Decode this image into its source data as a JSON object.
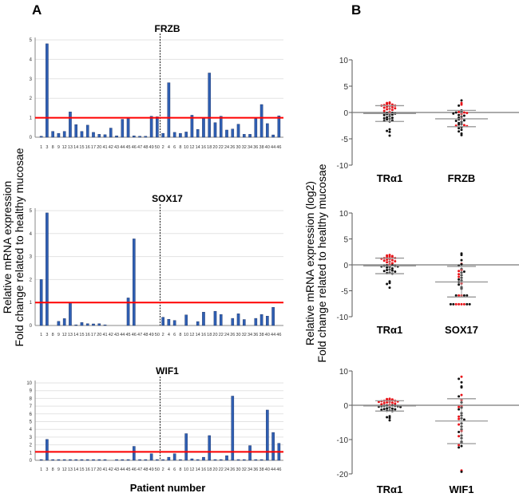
{
  "panel_labels": {
    "a": "A",
    "b": "B"
  },
  "left_ylabel": [
    "Relative mRNA expression",
    "Fold change related to healthy mucosae"
  ],
  "left_xlabel": "Patient number",
  "right_ylabel": [
    "Relative mRNA expression (log2)",
    "Fold change related to healthy mucosae"
  ],
  "colors": {
    "bar": "#2f5fb3",
    "threshold": "#ff0000",
    "dot_red": "#e8141a",
    "dot_black": "#111111",
    "sd": "#999999"
  },
  "chart_data": [
    {
      "type": "bar",
      "title": "FRZB",
      "ylim": [
        0,
        5
      ],
      "yticks": [
        0,
        1,
        2,
        3,
        4,
        5
      ],
      "threshold": 1,
      "grid": true,
      "categories": [
        "1",
        "3",
        "8",
        "9",
        "12",
        "13",
        "14",
        "15",
        "16",
        "17",
        "20",
        "41",
        "42",
        "43",
        "44",
        "45",
        "46",
        "47",
        "48",
        "49",
        "50",
        "2",
        "4",
        "6",
        "8",
        "10",
        "12",
        "14",
        "16",
        "18",
        "20",
        "22",
        "24",
        "26",
        "30",
        "32",
        "34",
        "36",
        "38",
        "40",
        "44",
        "46"
      ],
      "values": [
        0.05,
        4.8,
        0.3,
        0.2,
        0.3,
        1.3,
        0.65,
        0.3,
        0.62,
        0.25,
        0.15,
        0.13,
        0.47,
        0.07,
        0.92,
        0.97,
        0.07,
        0.05,
        0.05,
        1.08,
        1.05,
        0.2,
        2.8,
        0.25,
        0.2,
        0.27,
        1.13,
        0.4,
        0.97,
        3.3,
        0.75,
        1.08,
        0.37,
        0.42,
        0.67,
        0.15,
        0.15,
        0.95,
        1.68,
        0.7,
        0.12,
        1.1
      ]
    },
    {
      "type": "bar",
      "title": "SOX17",
      "ylim": [
        0,
        5
      ],
      "yticks": [
        0,
        1,
        2,
        3,
        4,
        5
      ],
      "threshold": 1,
      "grid": true,
      "categories": [
        "1",
        "3",
        "8",
        "9",
        "12",
        "13",
        "14",
        "15",
        "16",
        "17",
        "20",
        "41",
        "42",
        "43",
        "44",
        "45",
        "46",
        "47",
        "48",
        "49",
        "50",
        "2",
        "4",
        "6",
        "8",
        "10",
        "12",
        "14",
        "16",
        "18",
        "20",
        "22",
        "24",
        "26",
        "30",
        "32",
        "34",
        "36",
        "38",
        "40",
        "44",
        "46"
      ],
      "values": [
        2.0,
        4.9,
        0,
        0.18,
        0.3,
        1.0,
        0.03,
        0.13,
        0.08,
        0.07,
        0.08,
        0.03,
        0,
        0,
        0,
        1.2,
        3.77,
        0,
        0,
        0,
        0,
        0.36,
        0.27,
        0.22,
        0,
        0.46,
        0,
        0.17,
        0.58,
        0,
        0.62,
        0.48,
        0,
        0.31,
        0.51,
        0.26,
        0,
        0.31,
        0.48,
        0.41,
        0.79,
        0
      ]
    },
    {
      "type": "bar",
      "title": "WIF1",
      "ylim": [
        0,
        10
      ],
      "yticks": [
        0,
        1,
        2,
        3,
        4,
        5,
        6,
        7,
        8,
        9,
        10
      ],
      "threshold": 1.1,
      "grid": true,
      "categories": [
        "1",
        "3",
        "8",
        "9",
        "12",
        "13",
        "14",
        "15",
        "16",
        "17",
        "20",
        "41",
        "42",
        "43",
        "44",
        "45",
        "46",
        "47",
        "48",
        "49",
        "50",
        "2",
        "4",
        "6",
        "8",
        "10",
        "12",
        "14",
        "16",
        "18",
        "20",
        "22",
        "24",
        "26",
        "30",
        "32",
        "34",
        "36",
        "38",
        "40",
        "44",
        "46"
      ],
      "values": [
        0.1,
        2.7,
        0.1,
        0.1,
        0.1,
        0.1,
        0.1,
        0.1,
        0.1,
        0.1,
        0.1,
        0.1,
        0,
        0.1,
        0.1,
        0.1,
        1.8,
        0.1,
        0.1,
        0.85,
        0.1,
        0.1,
        0.4,
        0.85,
        0.1,
        3.45,
        0.2,
        0.1,
        0.4,
        3.2,
        0.1,
        0.1,
        0.6,
        8.3,
        0.1,
        0.1,
        1.9,
        0.1,
        0.1,
        6.5,
        3.6,
        2.2
      ]
    },
    {
      "type": "scatter",
      "ylim": [
        -10,
        10
      ],
      "yticks": [
        -10,
        -5,
        0,
        5,
        10
      ],
      "groups": [
        {
          "name": "TRα1",
          "mean": -0.2,
          "sd_upper": 1.3,
          "sd_lower": -1.7,
          "red": [
            1.8,
            1.9,
            1.6,
            1.5,
            1.4,
            1.3,
            1.2,
            1.1,
            1.0,
            0.9,
            0.8,
            0.7,
            0.5,
            0.3,
            0.1,
            1.7,
            1.3,
            0.6
          ],
          "black": [
            -0.1,
            -0.2,
            -0.3,
            -0.2,
            -0.4,
            -0.5,
            -0.1,
            -0.3,
            -0.7,
            -1.0,
            -1.1,
            -1.3,
            -1.5,
            -1.6,
            -1.7,
            -1.2,
            -0.9,
            -3.5,
            -3.2,
            -4.4,
            -3.7
          ]
        },
        {
          "name": "FRZB",
          "mean": -1.2,
          "sd_upper": 0.4,
          "sd_lower": -2.7,
          "red": [
            1.8,
            1.5,
            0.1,
            0,
            -0.1,
            -0.3,
            -1.2,
            -2.6,
            -2.4,
            -2.5
          ],
          "black": [
            2.3,
            1.3,
            0.4,
            0.2,
            0,
            -0.2,
            -0.5,
            -0.6,
            -0.8,
            -1.0,
            -1.3,
            -1.5,
            -1.6,
            -1.8,
            -2.0,
            -2.2,
            -2.3,
            -2.8,
            -3.0,
            -3.3,
            -3.6,
            -4.0,
            -4.3
          ]
        }
      ]
    },
    {
      "type": "scatter",
      "ylim": [
        -10,
        10
      ],
      "yticks": [
        -10,
        -5,
        0,
        5,
        10
      ],
      "groups": [
        {
          "name": "TRα1",
          "mean": -0.2,
          "sd_upper": 1.3,
          "sd_lower": -1.7,
          "red": [
            1.8,
            1.9,
            1.6,
            1.5,
            1.4,
            1.3,
            1.2,
            1.1,
            1.0,
            0.9,
            0.8,
            0.7,
            0.5,
            0.3,
            0.1,
            1.7,
            1.3,
            0.6
          ],
          "black": [
            -0.1,
            -0.2,
            -0.3,
            -0.2,
            -0.4,
            -0.5,
            -0.1,
            -0.3,
            -0.7,
            -1.0,
            -1.1,
            -1.3,
            -1.5,
            -1.6,
            -1.7,
            -1.2,
            -0.9,
            -3.5,
            -3.2,
            -4.4,
            -3.7
          ]
        },
        {
          "name": "SOX17",
          "mean": -3.3,
          "sd_upper": -0.3,
          "sd_lower": -6.2,
          "red": [
            0.2,
            -1.0,
            -1.2,
            -1.8,
            -2.3,
            -3.6,
            -5.9,
            -5.9,
            -7.6,
            -7.6,
            -7.6,
            -7.6
          ],
          "black": [
            2.2,
            1.9,
            0.9,
            0.1,
            -0.2,
            -0.8,
            -1.3,
            -1.5,
            -2.0,
            -2.5,
            -2.8,
            -3.0,
            -3.3,
            -3.8,
            -4.3,
            -4.6,
            -5.9,
            -5.9,
            -5.9,
            -7.6,
            -7.6,
            -7.6,
            -7.6
          ]
        }
      ]
    },
    {
      "type": "scatter",
      "ylim": [
        -20,
        10
      ],
      "yticks": [
        -20,
        -10,
        0,
        10
      ],
      "groups": [
        {
          "name": "TRα1",
          "mean": -0.2,
          "sd_upper": 1.3,
          "sd_lower": -1.7,
          "red": [
            1.8,
            1.9,
            1.6,
            1.5,
            1.4,
            1.3,
            1.2,
            1.1,
            1.0,
            0.9,
            0.8,
            0.7,
            0.5,
            0.3,
            0.1,
            1.7,
            1.3,
            0.6
          ],
          "black": [
            -0.1,
            -0.2,
            -0.3,
            -0.2,
            -0.4,
            -0.5,
            -0.1,
            -0.3,
            -0.7,
            -1.0,
            -1.1,
            -1.3,
            -1.5,
            -1.6,
            -1.7,
            -1.2,
            -0.9,
            -3.5,
            -3.2,
            -4.4,
            -3.7
          ]
        },
        {
          "name": "WIF1",
          "mean": -4.6,
          "sd_upper": 1.9,
          "sd_lower": -11.2,
          "red": [
            8.3,
            3.0,
            1.5,
            -0.5,
            -0.3,
            -3.3,
            -4.0,
            -5.6,
            -7.5,
            -9.0,
            -11.6,
            -19.0
          ],
          "black": [
            7.7,
            6.7,
            5.5,
            5.2,
            2.6,
            0.8,
            -0.7,
            -1.2,
            -2.3,
            -3.0,
            -3.8,
            -4.2,
            -5.3,
            -6.2,
            -7.0,
            -7.8,
            -8.8,
            -9.6,
            -10.6,
            -11.0,
            -11.9,
            -12.3,
            -19.4
          ]
        }
      ]
    }
  ]
}
